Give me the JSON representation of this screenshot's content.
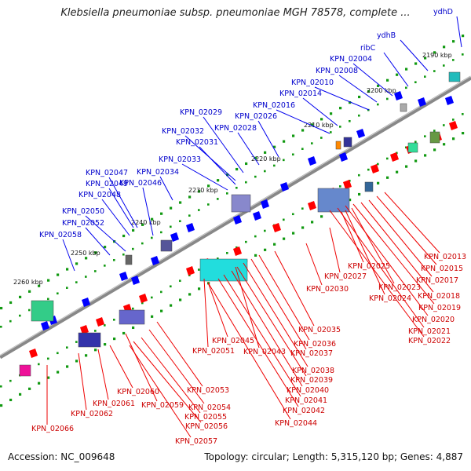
{
  "title": "Klebsiella pneumoniae subsp. pneumoniae MGH 78578, complete ...",
  "accession": "Accession: NC_009648",
  "meta": "Topology: circular; Length: 5,315,120 bp; Genes: 4,887",
  "colors": {
    "forward": "#0000ff",
    "reverse": "#ff0000",
    "backbone": "#888888",
    "tick": "#119911"
  },
  "kbp_marks": [
    "2190 kbp",
    "2200 kbp",
    "2210 kbp",
    "2220 kbp",
    "2230 kbp",
    "2240 kbp",
    "2250 kbp",
    "2260 kbp"
  ],
  "upper_labels": [
    "ydhD",
    "ydhB",
    "ribC",
    "KPN_02004",
    "KPN_02008",
    "KPN_02010",
    "KPN_02014",
    "KPN_02016",
    "KPN_02026",
    "KPN_02028",
    "KPN_02029",
    "KPN_02032",
    "KPN_02031",
    "KPN_02033",
    "KPN_02034",
    "KPN_02047",
    "KPN_02049",
    "KPN_02046",
    "KPN_02048",
    "KPN_02050",
    "KPN_02052",
    "KPN_02058"
  ],
  "lower_labels": [
    "KPN_02013",
    "KPN_02015",
    "KPN_02017",
    "KPN_02018",
    "KPN_02019",
    "KPN_02020",
    "KPN_02021",
    "KPN_02022",
    "KPN_02025",
    "KPN_02023",
    "KPN_02024",
    "KPN_02027",
    "KPN_02030",
    "KPN_02035",
    "KPN_02036",
    "KPN_02037",
    "KPN_02045",
    "KPN_02043",
    "KPN_02051",
    "KPN_02038",
    "KPN_02039",
    "KPN_02040",
    "KPN_02041",
    "KPN_02042",
    "KPN_02044",
    "KPN_02053",
    "KPN_02054",
    "KPN_02055",
    "KPN_02056",
    "KPN_02057",
    "KPN_02060",
    "KPN_02061",
    "KPN_02059",
    "KPN_02062",
    "KPN_02066"
  ]
}
